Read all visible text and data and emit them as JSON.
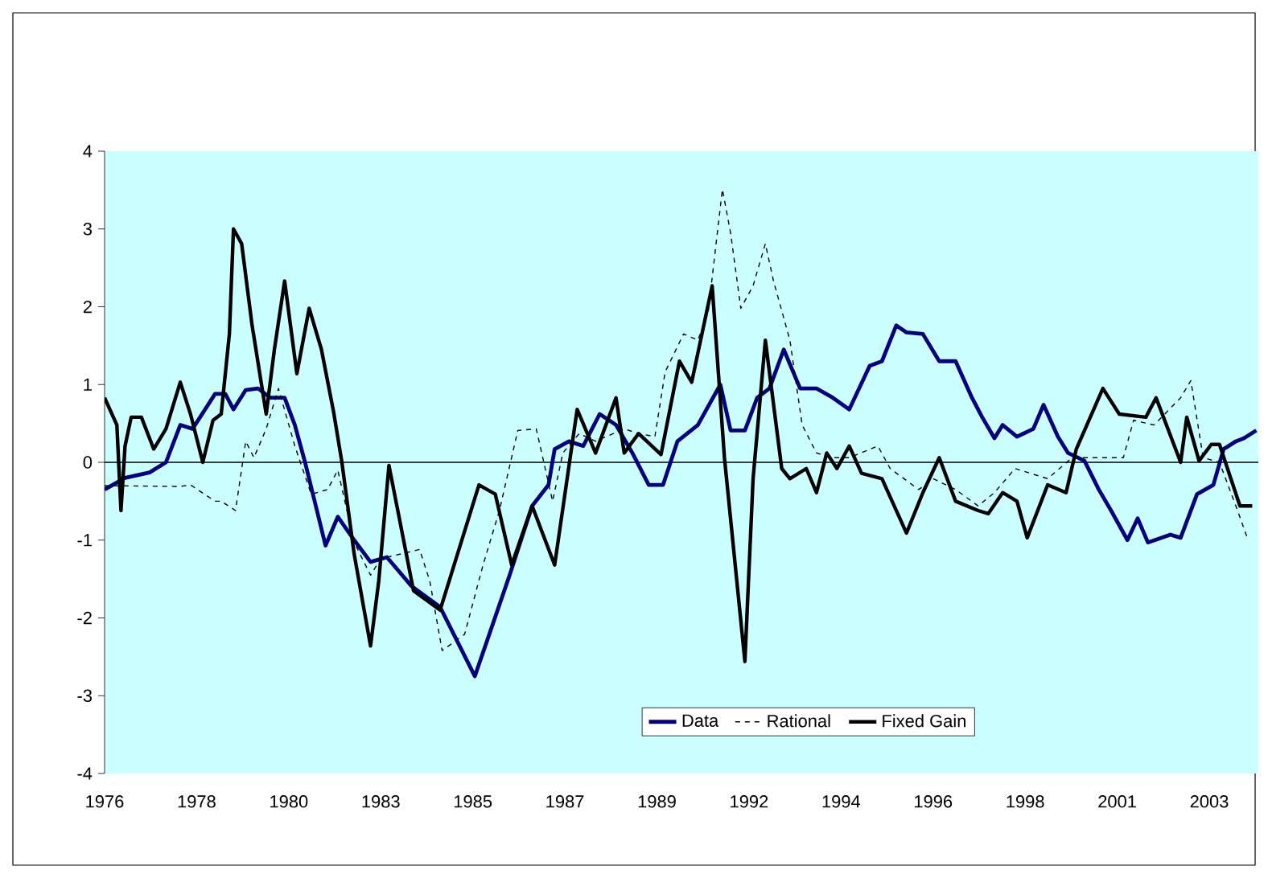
{
  "chart_data": {
    "type": "line",
    "xlim": [
      1976,
      2004.2
    ],
    "ylim": [
      -4,
      4
    ],
    "yticks": [
      -4,
      -3,
      -2,
      -1,
      0,
      1,
      2,
      3,
      4
    ],
    "xticks": [
      {
        "value": 1976,
        "label": "1976"
      },
      {
        "value": 1978.25,
        "label": "1978"
      },
      {
        "value": 1980.5,
        "label": "1980"
      },
      {
        "value": 1982.75,
        "label": "1983"
      },
      {
        "value": 1985,
        "label": "1985"
      },
      {
        "value": 1987.25,
        "label": "1987"
      },
      {
        "value": 1989.5,
        "label": "1989"
      },
      {
        "value": 1991.75,
        "label": "1992"
      },
      {
        "value": 1994,
        "label": "1994"
      },
      {
        "value": 1996.25,
        "label": "1996"
      },
      {
        "value": 1998.5,
        "label": "1998"
      },
      {
        "value": 2000.75,
        "label": "2001"
      },
      {
        "value": 2003,
        "label": "2003"
      }
    ],
    "legend": "bottom",
    "ref_lines": [
      {
        "axis": "y",
        "value": 0
      }
    ],
    "series": [
      {
        "name": "Data",
        "color": "#000080",
        "line_style": "solid",
        "x": [
          1976.0,
          1976.5,
          1977.1,
          1977.5,
          1977.85,
          1978.15,
          1978.7,
          1978.95,
          1979.15,
          1979.45,
          1979.75,
          1980.05,
          1980.4,
          1980.65,
          1980.9,
          1981.4,
          1981.7,
          1982.1,
          1982.5,
          1982.9,
          1983.5,
          1984.2,
          1985.05,
          1985.9,
          1986.45,
          1986.85,
          1987.0,
          1987.35,
          1987.7,
          1988.1,
          1988.5,
          1988.9,
          1989.3,
          1989.65,
          1990.0,
          1990.5,
          1991.05,
          1991.3,
          1991.65,
          1991.95,
          1992.25,
          1992.6,
          1993.0,
          1993.4,
          1993.8,
          1994.2,
          1994.7,
          1995.0,
          1995.35,
          1995.6,
          1996.0,
          1996.4,
          1996.8,
          1997.2,
          1997.45,
          1997.75,
          1997.95,
          1998.3,
          1998.7,
          1998.95,
          1999.3,
          1999.55,
          1999.95,
          2000.3,
          2000.6,
          2001.0,
          2001.25,
          2001.5,
          2002.05,
          2002.3,
          2002.7,
          2003.1,
          2003.35,
          2003.65,
          2003.85,
          2004.15
        ],
        "values": [
          -0.35,
          -0.2,
          -0.13,
          0,
          0.48,
          0.43,
          0.88,
          0.88,
          0.68,
          0.93,
          0.95,
          0.83,
          0.83,
          0.48,
          0,
          -1.07,
          -0.7,
          -1.0,
          -1.28,
          -1.22,
          -1.59,
          -1.86,
          -2.75,
          -1.45,
          -0.56,
          -0.29,
          0.17,
          0.27,
          0.21,
          0.62,
          0.48,
          0.12,
          -0.29,
          -0.29,
          0.27,
          0.48,
          1.0,
          0.41,
          0.41,
          0.83,
          0.95,
          1.45,
          0.95,
          0.95,
          0.83,
          0.68,
          1.24,
          1.3,
          1.76,
          1.67,
          1.65,
          1.3,
          1.3,
          0.83,
          0.58,
          0.31,
          0.48,
          0.33,
          0.43,
          0.74,
          0.33,
          0.12,
          0.02,
          -0.35,
          -0.62,
          -1.0,
          -0.72,
          -1.03,
          -0.93,
          -0.97,
          -0.41,
          -0.29,
          0.17,
          0.27,
          0.31,
          0.41
        ]
      },
      {
        "name": "Rational",
        "color": "#000000",
        "line_style": "dashed",
        "x": [
          1976.0,
          1977.85,
          1978.1,
          1978.7,
          1978.85,
          1979.2,
          1979.45,
          1979.65,
          1979.95,
          1980.25,
          1980.65,
          1981.05,
          1981.45,
          1981.7,
          1982.1,
          1982.5,
          1982.75,
          1983.7,
          1983.95,
          1984.25,
          1984.8,
          1985.25,
          1985.65,
          1986.1,
          1986.55,
          1986.95,
          1987.2,
          1987.6,
          1988.0,
          1988.7,
          1989.05,
          1989.45,
          1989.7,
          1990.15,
          1990.5,
          1990.75,
          1991.1,
          1991.3,
          1991.55,
          1991.85,
          1992.15,
          1992.35,
          1992.75,
          1993.05,
          1993.4,
          1993.8,
          1994.2,
          1994.9,
          1995.2,
          1995.9,
          1996.25,
          1996.8,
          1997.35,
          1997.75,
          1998.25,
          1999.05,
          1999.65,
          2000.9,
          2001.15,
          2001.65,
          2002.3,
          2002.55,
          2002.85,
          2003.25,
          2003.65,
          2003.95
        ],
        "values": [
          -0.3,
          -0.31,
          -0.29,
          -0.5,
          -0.5,
          -0.62,
          0.27,
          0.06,
          0.43,
          0.95,
          0.21,
          -0.41,
          -0.35,
          -0.1,
          -1.03,
          -1.45,
          -1.24,
          -1.12,
          -1.53,
          -2.42,
          -2.21,
          -1.32,
          -0.62,
          0.41,
          0.43,
          -0.5,
          0.12,
          0.37,
          0.27,
          0.43,
          0.37,
          0.33,
          1.16,
          1.65,
          1.57,
          1.92,
          3.51,
          2.95,
          1.98,
          2.27,
          2.81,
          2.33,
          1.57,
          0.48,
          0.12,
          0.06,
          0.06,
          0.21,
          -0.08,
          -0.35,
          -0.21,
          -0.35,
          -0.56,
          -0.39,
          -0.08,
          -0.21,
          0.06,
          0.06,
          0.54,
          0.48,
          0.83,
          1.05,
          0.06,
          0,
          -0.56,
          -1.0
        ]
      },
      {
        "name": "Fixed Gain",
        "color": "#000000",
        "line_style": "solid",
        "x": [
          1976.0,
          1976.3,
          1976.4,
          1976.5,
          1976.65,
          1976.9,
          1977.2,
          1977.5,
          1977.85,
          1978.1,
          1978.4,
          1978.65,
          1978.85,
          1979.05,
          1979.15,
          1979.35,
          1979.6,
          1979.95,
          1980.15,
          1980.4,
          1980.7,
          1981.0,
          1981.3,
          1981.6,
          1981.8,
          1982.1,
          1982.5,
          1982.7,
          1982.95,
          1983.55,
          1984.2,
          1985.15,
          1985.55,
          1985.95,
          1986.45,
          1987.0,
          1987.55,
          1988.0,
          1988.5,
          1988.7,
          1989.05,
          1989.6,
          1990.05,
          1990.35,
          1990.85,
          1991.15,
          1991.65,
          1991.85,
          1992.15,
          1992.55,
          1992.75,
          1993.15,
          1993.4,
          1993.65,
          1993.9,
          1994.2,
          1994.5,
          1995.0,
          1995.6,
          1996.0,
          1996.4,
          1996.8,
          1997.35,
          1997.6,
          1997.95,
          1998.3,
          1998.55,
          1999.05,
          1999.5,
          1999.75,
          2000.4,
          2000.8,
          2001.45,
          2001.7,
          2002.3,
          2002.45,
          2002.75,
          2003.05,
          2003.25,
          2003.75,
          2004.05
        ],
        "values": [
          0.83,
          0.48,
          -0.62,
          0.21,
          0.58,
          0.58,
          0.17,
          0.43,
          1.03,
          0.62,
          0,
          0.54,
          0.62,
          1.65,
          3.0,
          2.81,
          1.78,
          0.62,
          1.45,
          2.33,
          1.14,
          1.98,
          1.45,
          0.64,
          0,
          -1.18,
          -2.36,
          -1.53,
          -0.04,
          -1.65,
          -1.9,
          -0.29,
          -0.41,
          -1.32,
          -0.56,
          -1.32,
          0.68,
          0.12,
          0.83,
          0.12,
          0.37,
          0.1,
          1.3,
          1.03,
          2.27,
          0.06,
          -2.56,
          -0.21,
          1.57,
          -0.08,
          -0.21,
          -0.08,
          -0.39,
          0.12,
          -0.08,
          0.21,
          -0.14,
          -0.21,
          -0.91,
          -0.39,
          0.06,
          -0.5,
          -0.62,
          -0.66,
          -0.39,
          -0.5,
          -0.97,
          -0.29,
          -0.39,
          0.17,
          0.95,
          0.62,
          0.58,
          0.83,
          0,
          0.58,
          0.02,
          0.23,
          0.23,
          -0.56,
          -0.56
        ]
      }
    ]
  }
}
